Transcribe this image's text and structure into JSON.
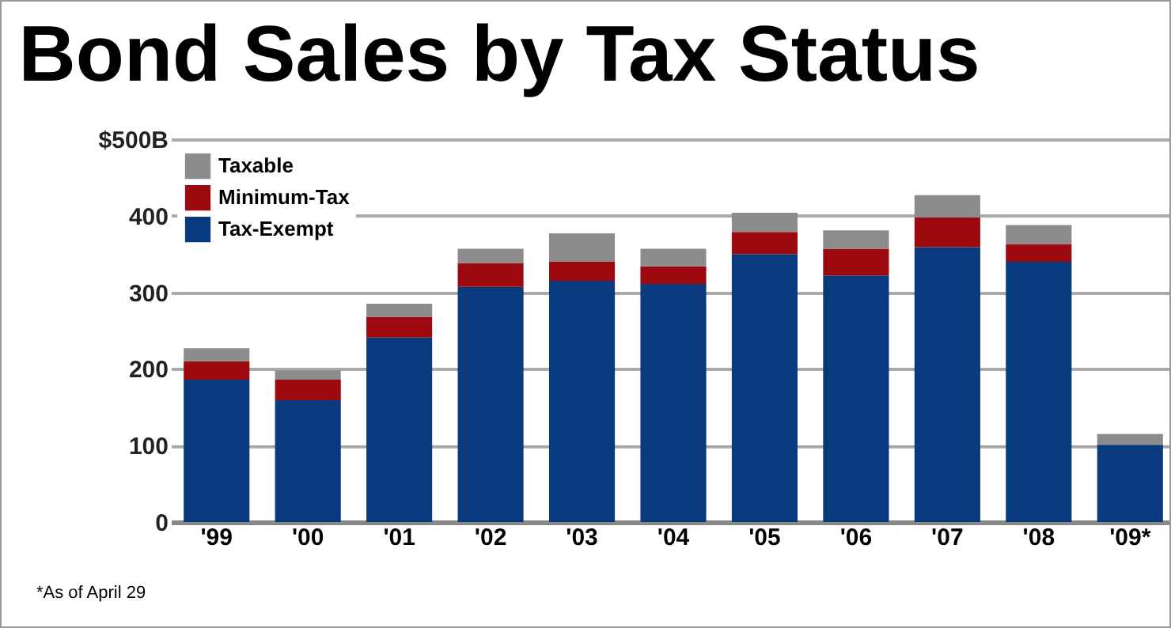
{
  "chart_data": {
    "type": "bar",
    "title": "Bond Sales by Tax Status",
    "stacked": true,
    "categories": [
      "'99",
      "'00",
      "'01",
      "'02",
      "'03",
      "'04",
      "'05",
      "'06",
      "'07",
      "'08",
      "'09*"
    ],
    "series": [
      {
        "name": "Tax-Exempt",
        "color": "#0a3a7e",
        "values": [
          186,
          159,
          241,
          307,
          315,
          311,
          350,
          322,
          359,
          340,
          101
        ]
      },
      {
        "name": "Minimum-Tax",
        "color": "#9c0a10",
        "values": [
          24,
          27,
          27,
          31,
          25,
          23,
          29,
          35,
          39,
          23,
          0
        ]
      },
      {
        "name": "Taxable",
        "color": "#8c8c8c",
        "values": [
          17,
          12,
          17,
          19,
          37,
          23,
          25,
          24,
          29,
          25,
          14
        ]
      }
    ],
    "ylim": [
      0,
      500
    ],
    "yticks": [
      0,
      100,
      200,
      300,
      400,
      {
        "value": 500,
        "label": "$500B"
      }
    ],
    "grid": "y",
    "legend": "top left",
    "annotations": [
      "*As of April 29"
    ]
  }
}
